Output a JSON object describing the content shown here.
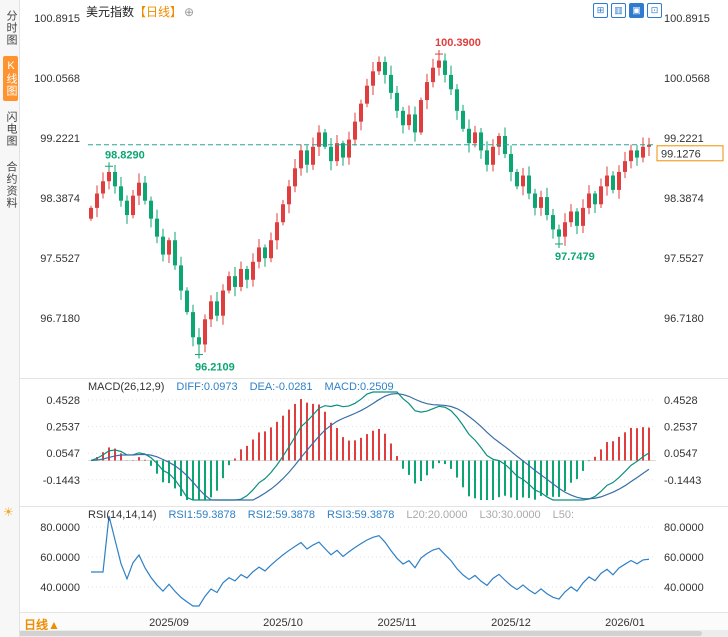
{
  "sidebar": {
    "tabs": [
      {
        "label": "分时图",
        "active": false
      },
      {
        "label": "K线图",
        "active": true
      },
      {
        "label": "闪电图",
        "active": false
      },
      {
        "label": "合约资料",
        "active": false
      }
    ],
    "sun_icon": "☀"
  },
  "header": {
    "title": "美元指数",
    "period_tag": "【日线】",
    "expand_icon": "⊕",
    "icons": [
      {
        "name": "grid-layout-icon",
        "glyph": "⊞"
      },
      {
        "name": "split-layout-icon",
        "glyph": "▥"
      },
      {
        "name": "kline-view-icon",
        "glyph": "▣"
      },
      {
        "name": "single-view-icon",
        "glyph": "⊡"
      }
    ]
  },
  "footer": {
    "period_label": "日线",
    "arrow": "▲"
  },
  "colors": {
    "accent_orange": "#f08c00",
    "up_red": "#e03e3e",
    "down_green": "#0ca673",
    "icon_blue": "#2e7bd0",
    "dashed_teal": "#26a69a"
  },
  "chart_data": [
    {
      "type": "candlestick",
      "title": "美元指数 日线",
      "y_ticks": [
        "100.8915",
        "100.0568",
        "99.2221",
        "98.3874",
        "97.5527",
        "96.7180"
      ],
      "x_ticks": [
        {
          "i": 13,
          "label": "2025/09"
        },
        {
          "i": 32,
          "label": "2025/10"
        },
        {
          "i": 51,
          "label": "2025/11"
        },
        {
          "i": 70,
          "label": "2025/12"
        },
        {
          "i": 89,
          "label": "2026/01"
        }
      ],
      "first_open": 98.1,
      "closes": [
        98.25,
        98.45,
        98.62,
        98.75,
        98.55,
        98.35,
        98.15,
        98.42,
        98.6,
        98.35,
        98.1,
        97.85,
        97.6,
        97.8,
        97.45,
        97.1,
        96.8,
        96.45,
        96.35,
        96.7,
        96.95,
        96.75,
        97.1,
        97.3,
        97.15,
        97.4,
        97.25,
        97.5,
        97.7,
        97.55,
        97.8,
        98.05,
        98.3,
        98.55,
        98.8,
        99.05,
        98.85,
        99.1,
        99.3,
        99.1,
        98.9,
        99.15,
        98.95,
        99.2,
        99.45,
        99.7,
        99.95,
        100.15,
        100.28,
        100.1,
        99.85,
        99.6,
        99.4,
        99.55,
        99.3,
        99.75,
        100.0,
        100.2,
        100.3,
        100.1,
        99.9,
        99.6,
        99.35,
        99.15,
        99.3,
        99.05,
        98.85,
        99.1,
        99.25,
        99.0,
        98.75,
        98.55,
        98.7,
        98.45,
        98.25,
        98.4,
        98.15,
        97.95,
        97.85,
        98.05,
        98.2,
        98.0,
        98.25,
        98.45,
        98.3,
        98.55,
        98.7,
        98.5,
        98.75,
        98.9,
        99.05,
        98.95,
        99.1,
        99.1276
      ],
      "wick_overrides": {
        "3": {
          "high": 98.829
        },
        "18": {
          "low": 96.2109
        },
        "58": {
          "high": 100.39
        },
        "78": {
          "low": 97.7479
        }
      },
      "annotations": [
        {
          "i": 3,
          "price": 98.829,
          "label": "98.8290",
          "color": "#0ca673",
          "pos": "above"
        },
        {
          "i": 58,
          "price": 100.39,
          "label": "100.3900",
          "color": "#e03e3e",
          "pos": "above"
        },
        {
          "i": 78,
          "price": 97.7479,
          "label": "97.7479",
          "color": "#0ca673",
          "pos": "below"
        },
        {
          "i": 18,
          "price": 96.2109,
          "label": "96.2109",
          "color": "#0ca673",
          "pos": "below"
        }
      ],
      "last_price": 99.1276,
      "last_price_label": "99.1276",
      "up_color": "#e03e3e",
      "down_color": "#0ca673",
      "dashed_line_color": "#26a69a",
      "tag_color": "#f08c00"
    },
    {
      "type": "macd",
      "label": "MACD(26,12,9)",
      "params": [
        26,
        12,
        9
      ],
      "values": {
        "diff": "DIFF:0.0973",
        "dea": "DEA:-0.0281",
        "macd": "MACD:0.2509"
      },
      "y_ticks": [
        "0.4528",
        "0.2537",
        "0.0547",
        "-0.1443"
      ],
      "diff_color": "#0b8f7d",
      "dea_color": "#3a6ea8"
    },
    {
      "type": "rsi",
      "label": "RSI(14,14,14)",
      "params": [
        14,
        14,
        14
      ],
      "values": [
        "RSI1:59.3878",
        "RSI2:59.3878",
        "RSI3:59.3878",
        "L20:20.0000",
        "L30:30.0000",
        "L50:"
      ],
      "y_ticks": [
        "80.0000",
        "60.0000",
        "40.0000"
      ],
      "line_color": "#2f80c6"
    }
  ]
}
